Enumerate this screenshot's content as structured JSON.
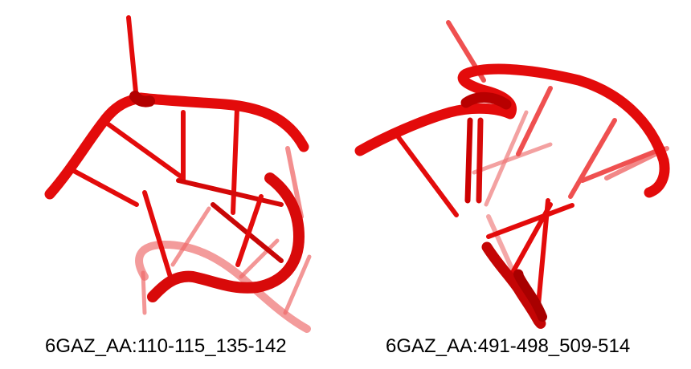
{
  "panels": [
    {
      "caption": "6GAZ_AA:110-115_135-142"
    },
    {
      "caption": "6GAZ_AA:491-498_509-514"
    }
  ],
  "colors": {
    "strand": "#e30b0b",
    "strand_dark": "#a80000",
    "strand_faded": "#ee5a5a"
  }
}
